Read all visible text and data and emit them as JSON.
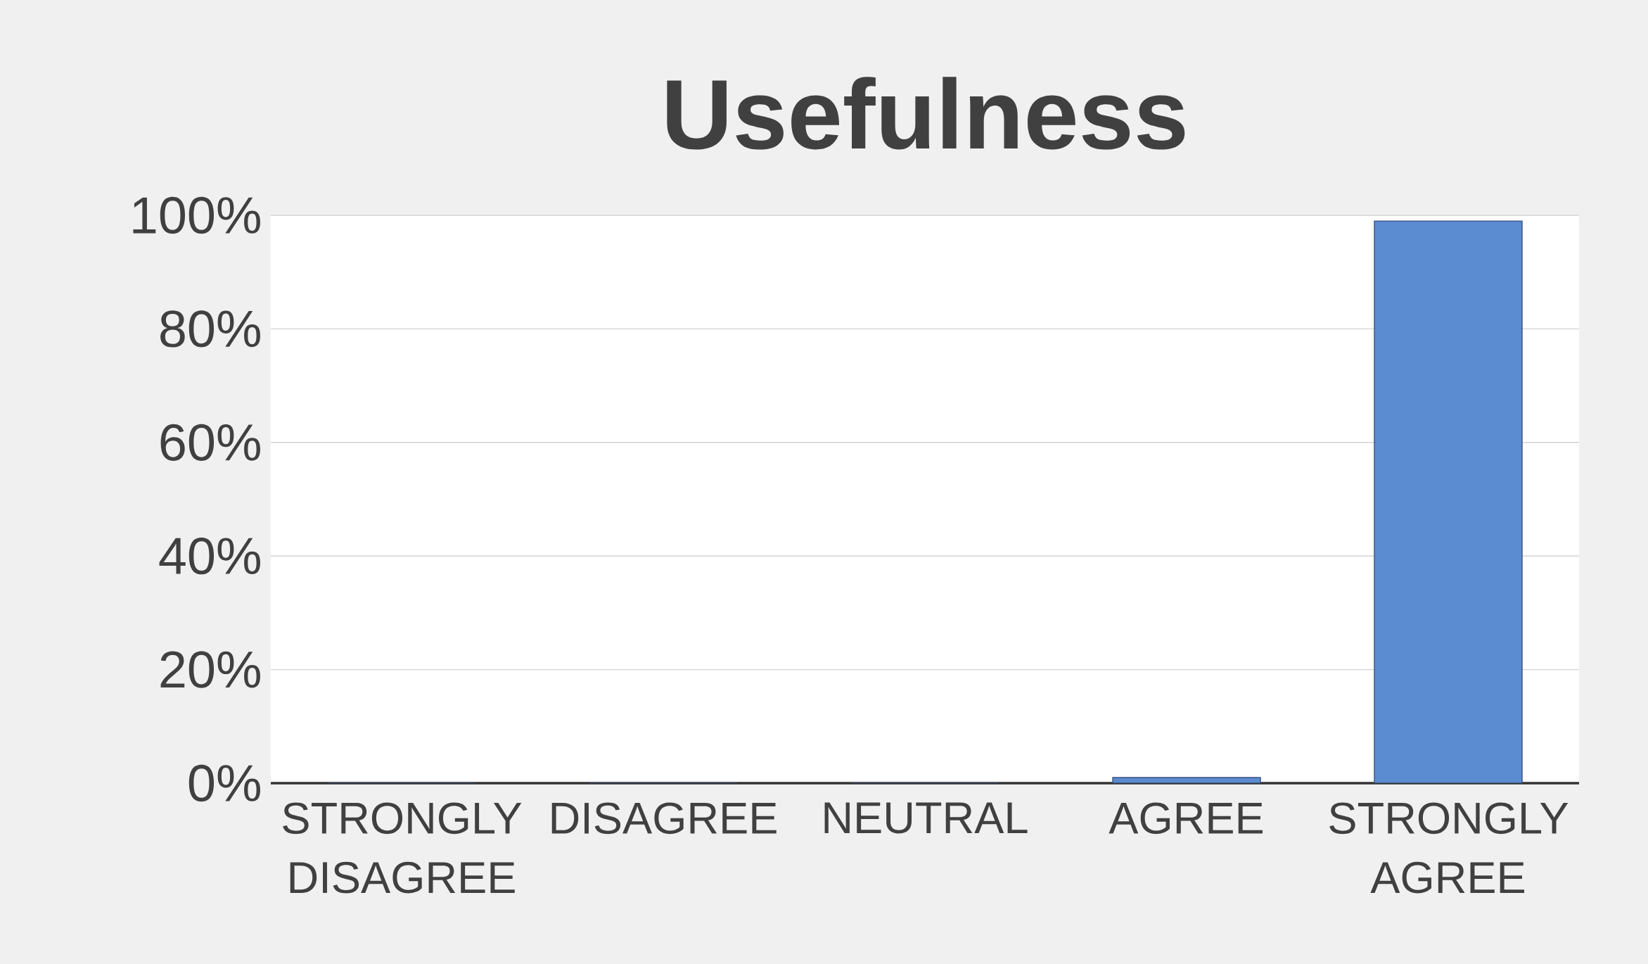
{
  "chart_data": {
    "type": "bar",
    "title": "Usefulness",
    "categories": [
      "STRONGLY DISAGREE",
      "DISAGREE",
      "NEUTRAL",
      "AGREE",
      "STRONGLY AGREE"
    ],
    "values": [
      0,
      0,
      0,
      1,
      99
    ],
    "color": "#5b8bd0",
    "ylim": [
      0,
      100
    ],
    "yticks": [
      {
        "value": 0,
        "label": "0%"
      },
      {
        "value": 20,
        "label": "20%"
      },
      {
        "value": 40,
        "label": "40%"
      },
      {
        "value": 60,
        "label": "60%"
      },
      {
        "value": 80,
        "label": "80%"
      },
      {
        "value": 100,
        "label": "100%"
      }
    ],
    "grid": "y"
  }
}
